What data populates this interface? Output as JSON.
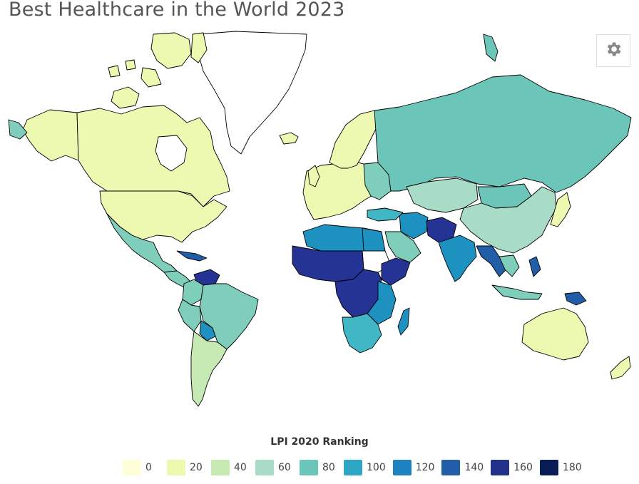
{
  "page": {
    "title": "Best Healthcare in the World 2023"
  },
  "toolbar": {
    "settings_icon": "gear-icon"
  },
  "map": {
    "type": "choropleth",
    "projection": "mercator",
    "color_scale": [
      "#ffffd9",
      "#edf8b1",
      "#c7e9b4",
      "#7fcdbb",
      "#41b6c4",
      "#1d91c0",
      "#225ea8",
      "#253494",
      "#1a2a80",
      "#081d58"
    ],
    "regions": [
      {
        "name": "Greenland",
        "color": "#ffffff"
      },
      {
        "name": "Canada",
        "color": "#edf8b1"
      },
      {
        "name": "United States",
        "color": "#edf8b1"
      },
      {
        "name": "Alaska",
        "color": "#edf8b1"
      },
      {
        "name": "Mexico",
        "color": "#7fcdbb"
      },
      {
        "name": "Central America",
        "color": "#7fcdbb"
      },
      {
        "name": "Venezuela",
        "color": "#253494"
      },
      {
        "name": "Colombia",
        "color": "#7fcdbb"
      },
      {
        "name": "Brazil",
        "color": "#7fcdbb"
      },
      {
        "name": "Bolivia",
        "color": "#1d91c0"
      },
      {
        "name": "Argentina",
        "color": "#c7e9b4"
      },
      {
        "name": "Europe",
        "color": "#edf8b1"
      },
      {
        "name": "Iceland",
        "color": "#edf8b1"
      },
      {
        "name": "Eastern Europe",
        "color": "#7fcdbb"
      },
      {
        "name": "Russia",
        "color": "#6cc5b9"
      },
      {
        "name": "Kazakhstan",
        "color": "#a8dcc6"
      },
      {
        "name": "Mongolia",
        "color": "#6cc5b9"
      },
      {
        "name": "China",
        "color": "#a8dcc6"
      },
      {
        "name": "Japan",
        "color": "#edf8b1"
      },
      {
        "name": "India",
        "color": "#1d91c0"
      },
      {
        "name": "Afghanistan",
        "color": "#253494"
      },
      {
        "name": "Iran",
        "color": "#1d91c0"
      },
      {
        "name": "Saudi Arabia",
        "color": "#7fcdbb"
      },
      {
        "name": "North Africa",
        "color": "#1d91c0"
      },
      {
        "name": "Sahel",
        "color": "#253494"
      },
      {
        "name": "Egypt",
        "color": "#1d91c0"
      },
      {
        "name": "Sudan",
        "color": "#ffffff"
      },
      {
        "name": "Central Africa",
        "color": "#253494"
      },
      {
        "name": "East Africa",
        "color": "#1d91c0"
      },
      {
        "name": "Southern Africa",
        "color": "#41b6c4"
      },
      {
        "name": "Madagascar",
        "color": "#1d91c0"
      },
      {
        "name": "Southeast Asia",
        "color": "#7fcdbb"
      },
      {
        "name": "Indonesia",
        "color": "#7fcdbb"
      },
      {
        "name": "Papua New Guinea",
        "color": "#225ea8"
      },
      {
        "name": "Australia",
        "color": "#edf8b1"
      },
      {
        "name": "New Zealand",
        "color": "#edf8b1"
      }
    ]
  },
  "legend": {
    "title": "LPI 2020 Ranking",
    "items": [
      {
        "label": "0",
        "color": "#ffffd9"
      },
      {
        "label": "20",
        "color": "#edf8b1"
      },
      {
        "label": "40",
        "color": "#c7e9b4"
      },
      {
        "label": "60",
        "color": "#a8dcc6"
      },
      {
        "label": "80",
        "color": "#6cc5b9"
      },
      {
        "label": "100",
        "color": "#2fa6c4"
      },
      {
        "label": "120",
        "color": "#1d82bf"
      },
      {
        "label": "140",
        "color": "#225ea8"
      },
      {
        "label": "160",
        "color": "#233289"
      },
      {
        "label": "180",
        "color": "#081d58"
      }
    ]
  }
}
